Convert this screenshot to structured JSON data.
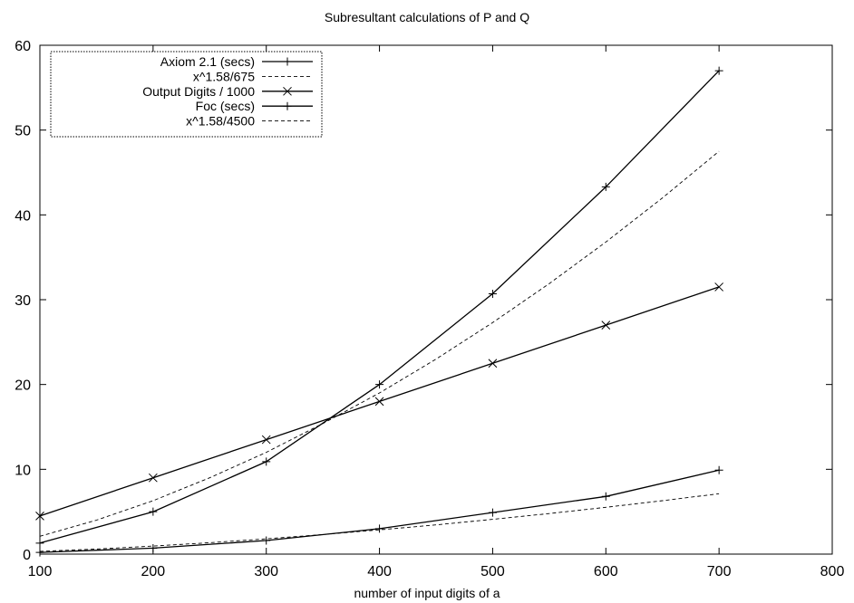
{
  "chart_data": {
    "type": "line",
    "title": "Subresultant calculations of P and Q",
    "xlabel": "number of input digits of a",
    "ylabel": "",
    "xlim": [
      100,
      800
    ],
    "ylim": [
      0,
      60
    ],
    "xticks": [
      100,
      200,
      300,
      400,
      500,
      600,
      700,
      800
    ],
    "yticks": [
      0,
      10,
      20,
      30,
      40,
      50,
      60
    ],
    "grid": false,
    "legend_position": "top-left",
    "series": [
      {
        "name": "Axiom 2.1 (secs)",
        "style": "solid",
        "marker": "plus",
        "x": [
          100,
          200,
          300,
          400,
          500,
          600,
          700
        ],
        "y": [
          1.3,
          5.0,
          10.9,
          20.0,
          30.7,
          43.3,
          57.0
        ]
      },
      {
        "name": "x^1.58/675",
        "style": "dashed",
        "marker": "none",
        "x": [
          100,
          150,
          200,
          250,
          300,
          350,
          400,
          450,
          500,
          550,
          600,
          650,
          700
        ],
        "y": [
          2.1,
          4.0,
          6.3,
          9.0,
          12.0,
          15.4,
          19.0,
          23.0,
          27.3,
          31.9,
          36.8,
          42.0,
          47.5
        ]
      },
      {
        "name": "Output Digits / 1000",
        "style": "solid",
        "marker": "cross",
        "x": [
          100,
          200,
          300,
          400,
          500,
          600,
          700
        ],
        "y": [
          4.5,
          9.0,
          13.5,
          18.0,
          22.5,
          27.0,
          31.5
        ]
      },
      {
        "name": "Foc (secs)",
        "style": "solid",
        "marker": "plus",
        "x": [
          100,
          200,
          300,
          400,
          500,
          600,
          700
        ],
        "y": [
          0.2,
          0.7,
          1.6,
          3.0,
          4.9,
          6.8,
          9.9
        ]
      },
      {
        "name": "x^1.58/4500",
        "style": "dashed",
        "marker": "none",
        "x": [
          100,
          150,
          200,
          250,
          300,
          350,
          400,
          450,
          500,
          550,
          600,
          650,
          700
        ],
        "y": [
          0.32,
          0.6,
          0.95,
          1.35,
          1.8,
          2.31,
          2.86,
          3.45,
          4.1,
          4.78,
          5.52,
          6.3,
          7.12
        ]
      }
    ]
  }
}
